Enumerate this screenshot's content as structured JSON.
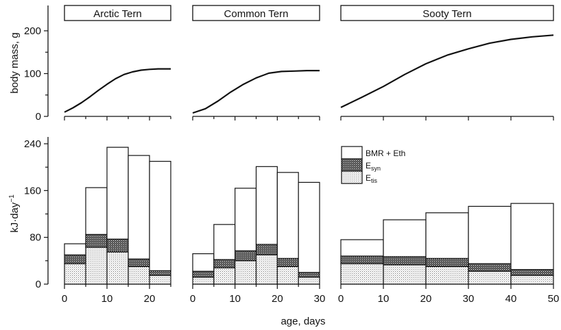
{
  "figure": {
    "xlabel": "age, days",
    "ylabel_top": "body mass, g",
    "ylabel_bottom_main": "kJ·day",
    "ylabel_bottom_sup": "−1"
  },
  "legend": {
    "items": [
      {
        "key": "bmr_eth",
        "label": "BMR + Eth",
        "sub": "",
        "fill": "#ffffff"
      },
      {
        "key": "esyn",
        "label": "E",
        "sub": "syn",
        "fill": "#555555"
      },
      {
        "key": "etis",
        "label": "E",
        "sub": "tis",
        "fill": "#dddddd"
      }
    ]
  },
  "chart_data": [
    {
      "type": "line",
      "title": "Arctic Tern",
      "ylabel": "body mass, g",
      "xlim": [
        0,
        25
      ],
      "ylim": [
        0,
        200
      ],
      "yticks": [
        0,
        100,
        200
      ],
      "x": [
        0,
        2,
        4,
        6,
        8,
        10,
        12,
        14,
        16,
        18,
        20,
        22,
        25
      ],
      "y": [
        10,
        20,
        32,
        46,
        61,
        75,
        88,
        98,
        104,
        108,
        110,
        111,
        111
      ]
    },
    {
      "type": "line",
      "title": "Common Tern",
      "ylabel": "",
      "xlim": [
        0,
        30
      ],
      "ylim": [
        0,
        200
      ],
      "x": [
        0,
        3,
        6,
        9,
        12,
        15,
        18,
        21,
        24,
        27,
        30
      ],
      "y": [
        8,
        18,
        36,
        57,
        75,
        90,
        101,
        105,
        106,
        107,
        107
      ]
    },
    {
      "type": "line",
      "title": "Sooty Tern",
      "ylabel": "",
      "xlim": [
        0,
        50
      ],
      "ylim": [
        0,
        200
      ],
      "x": [
        0,
        5,
        10,
        15,
        20,
        25,
        30,
        35,
        40,
        45,
        50
      ],
      "y": [
        21,
        45,
        70,
        98,
        123,
        143,
        158,
        171,
        180,
        186,
        190
      ]
    },
    {
      "type": "bar",
      "stacked": true,
      "ylabel": "kJ·day⁻¹",
      "xlabel": "",
      "xlim": [
        0,
        25
      ],
      "ylim": [
        0,
        240
      ],
      "xticks": [
        0,
        10,
        20
      ],
      "yticks": [
        0,
        80,
        160,
        240
      ],
      "bins": [
        [
          0,
          5
        ],
        [
          5,
          10
        ],
        [
          10,
          15
        ],
        [
          15,
          20
        ],
        [
          20,
          25
        ]
      ],
      "series": [
        {
          "name": "Etis",
          "values": [
            35,
            63,
            55,
            30,
            15
          ]
        },
        {
          "name": "Esyn",
          "values": [
            15,
            22,
            22,
            13,
            8
          ]
        },
        {
          "name": "BMR + Eth",
          "values": [
            19,
            80,
            157,
            177,
            187
          ]
        }
      ]
    },
    {
      "type": "bar",
      "stacked": true,
      "ylabel": "",
      "xlabel": "age, days",
      "xlim": [
        0,
        30
      ],
      "ylim": [
        0,
        240
      ],
      "xticks": [
        0,
        10,
        20,
        30
      ],
      "bins": [
        [
          0,
          5
        ],
        [
          5,
          10
        ],
        [
          10,
          15
        ],
        [
          15,
          20
        ],
        [
          20,
          25
        ],
        [
          25,
          30
        ]
      ],
      "series": [
        {
          "name": "Etis",
          "values": [
            12,
            28,
            40,
            50,
            30,
            12
          ]
        },
        {
          "name": "Esyn",
          "values": [
            10,
            14,
            17,
            18,
            14,
            8
          ]
        },
        {
          "name": "BMR + Eth",
          "values": [
            30,
            60,
            107,
            133,
            147,
            154
          ]
        }
      ]
    },
    {
      "type": "bar",
      "stacked": true,
      "ylabel": "",
      "xlabel": "",
      "xlim": [
        0,
        50
      ],
      "ylim": [
        0,
        240
      ],
      "xticks": [
        0,
        10,
        20,
        30,
        40,
        50
      ],
      "bins": [
        [
          0,
          10
        ],
        [
          10,
          20
        ],
        [
          20,
          30
        ],
        [
          30,
          40
        ],
        [
          40,
          50
        ]
      ],
      "series": [
        {
          "name": "Etis",
          "values": [
            35,
            33,
            30,
            22,
            15
          ]
        },
        {
          "name": "Esyn",
          "values": [
            13,
            14,
            14,
            13,
            10
          ]
        },
        {
          "name": "BMR + Eth",
          "values": [
            28,
            63,
            78,
            98,
            113
          ]
        }
      ]
    }
  ]
}
